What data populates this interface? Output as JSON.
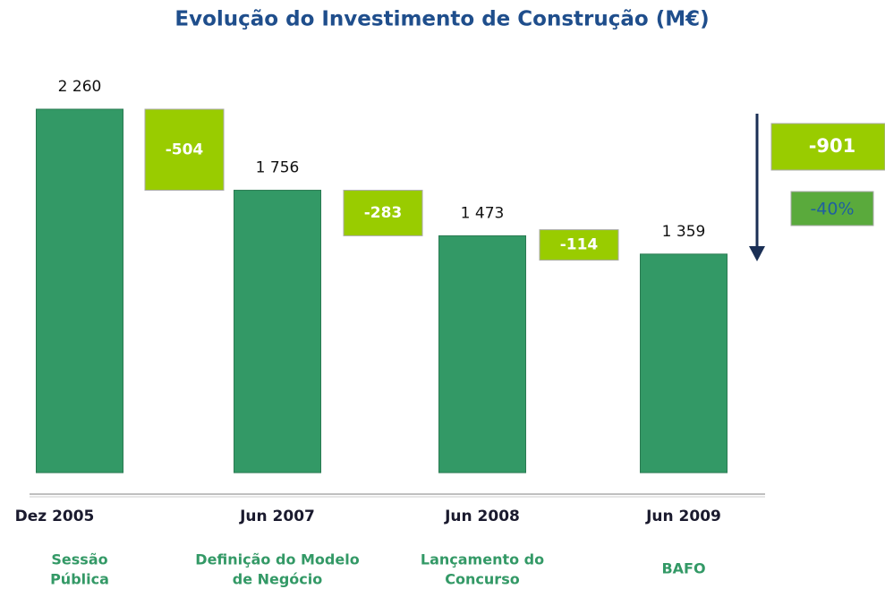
{
  "chart_data": {
    "type": "waterfall",
    "title": "Evolução do Investimento de Construção (M€)",
    "categories": [
      "Dez 2005",
      "Jun 2007",
      "Jun 2008",
      "Jun 2009"
    ],
    "stages": [
      [
        "Sessão",
        "Pública"
      ],
      [
        "Definição do Modelo",
        "de Negócio"
      ],
      [
        "Lançamento do",
        "Concurso"
      ],
      [
        "BAFO"
      ]
    ],
    "values": [
      2260,
      1756,
      1473,
      1359
    ],
    "value_labels": [
      "2 260",
      "1 756",
      "1 473",
      "1 359"
    ],
    "deltas": [
      -504,
      -283,
      -114
    ],
    "total_change": -901,
    "total_change_percent": -40,
    "total_change_percent_label": "-40%",
    "bar_color": "#339966",
    "delta_color": "#99cc00"
  }
}
